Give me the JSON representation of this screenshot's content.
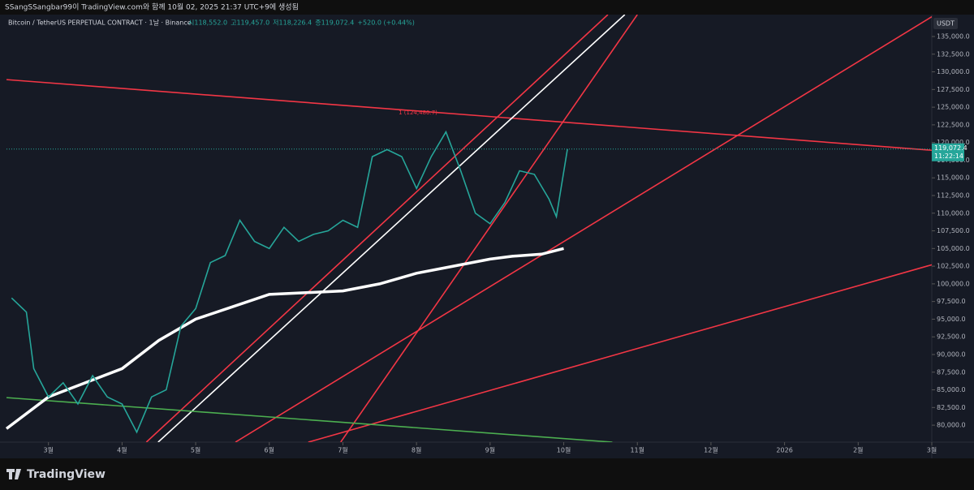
{
  "header": {
    "text": "SSangSSangbar99이 TradingView.com와 함께 10월 02, 2025 21:37 UTC+9에 생성됨"
  },
  "chart_data": {
    "type": "line",
    "symbol": "Bitcoin / TetherUS PERPETUAL CONTRACT · 1날 · Binance",
    "ohlc": [
      "시118,552.0",
      "고119,457.0",
      "저118,226.4",
      "종119,072.4",
      "+520.0 (+0.44%)"
    ],
    "currency": "USDT",
    "annotation": "1 (124,480.7)",
    "last_price": {
      "value": 119072.4,
      "label": "119,072.4"
    },
    "countdown": "11:22:14",
    "xlim": [
      2.43,
      15.0
    ],
    "xticks": [
      {
        "value": 3,
        "label": "3월"
      },
      {
        "value": 4,
        "label": "4월"
      },
      {
        "value": 5,
        "label": "5월"
      },
      {
        "value": 6,
        "label": "6월"
      },
      {
        "value": 7,
        "label": "7월"
      },
      {
        "value": 8,
        "label": "8월"
      },
      {
        "value": 9,
        "label": "9월"
      },
      {
        "value": 10,
        "label": "10월"
      },
      {
        "value": 11,
        "label": "11월"
      },
      {
        "value": 12,
        "label": "12월"
      },
      {
        "value": 13,
        "label": "2026"
      },
      {
        "value": 14,
        "label": "2월"
      },
      {
        "value": 15,
        "label": "3월"
      }
    ],
    "ylim": [
      77600,
      138100
    ],
    "yticks": [
      {
        "value": 80000,
        "label": "80,000.0"
      },
      {
        "value": 82500,
        "label": "82,500.0"
      },
      {
        "value": 85000,
        "label": "85,000.0"
      },
      {
        "value": 87500,
        "label": "87,500.0"
      },
      {
        "value": 90000,
        "label": "90,000.0"
      },
      {
        "value": 92500,
        "label": "92,500.0"
      },
      {
        "value": 95000,
        "label": "95,000.0"
      },
      {
        "value": 97500,
        "label": "97,500.0"
      },
      {
        "value": 100000,
        "label": "100,000.0"
      },
      {
        "value": 102500,
        "label": "102,500.0"
      },
      {
        "value": 105000,
        "label": "105,000.0"
      },
      {
        "value": 107500,
        "label": "107,500.0"
      },
      {
        "value": 110000,
        "label": "110,000.0"
      },
      {
        "value": 112500,
        "label": "112,500.0"
      },
      {
        "value": 115000,
        "label": "115,000.0"
      },
      {
        "value": 117500,
        "label": "117,500.0"
      },
      {
        "value": 120000,
        "label": "120,000.0"
      },
      {
        "value": 122500,
        "label": "122,500.0"
      },
      {
        "value": 125000,
        "label": "125,000.0"
      },
      {
        "value": 127500,
        "label": "127,500.0"
      },
      {
        "value": 130000,
        "label": "130,000.0"
      },
      {
        "value": 132500,
        "label": "132,500.0"
      },
      {
        "value": 135000,
        "label": "135,000.0"
      }
    ],
    "price": {
      "color": "#26a69a",
      "x": [
        2.5,
        2.7,
        2.8,
        3.0,
        3.2,
        3.4,
        3.6,
        3.8,
        4.0,
        4.2,
        4.4,
        4.6,
        4.8,
        5.0,
        5.2,
        5.4,
        5.6,
        5.8,
        6.0,
        6.2,
        6.4,
        6.6,
        6.8,
        7.0,
        7.2,
        7.4,
        7.6,
        7.8,
        8.0,
        8.2,
        8.4,
        8.6,
        8.8,
        9.0,
        9.2,
        9.4,
        9.6,
        9.8,
        9.9,
        10.05
      ],
      "values": [
        98000,
        96000,
        88000,
        84000,
        86000,
        83000,
        87000,
        84000,
        83000,
        79000,
        84000,
        85000,
        94000,
        96500,
        103000,
        104000,
        109000,
        106000,
        105000,
        108000,
        106000,
        107000,
        107500,
        109000,
        108000,
        118000,
        119000,
        118000,
        113500,
        118000,
        121500,
        116000,
        110000,
        108500,
        111500,
        116000,
        115500,
        112000,
        109500,
        119072.4
      ]
    },
    "moving_average": {
      "color": "#ffffff",
      "x": [
        2.43,
        3.0,
        4.0,
        4.5,
        5.0,
        6.0,
        7.0,
        7.5,
        8.0,
        8.5,
        9.0,
        9.3,
        9.7,
        10.0
      ],
      "values": [
        79500,
        84000,
        88000,
        92000,
        95000,
        98500,
        99000,
        100000,
        101500,
        102500,
        103500,
        103900,
        104200,
        105000
      ]
    },
    "trendlines": [
      {
        "color": "#f23645",
        "x": [
          2.43,
          15.0
        ],
        "y": [
          128900,
          118900
        ]
      },
      {
        "color": "#ffffff",
        "x": [
          4.49,
          10.83
        ],
        "y": [
          77600,
          138100
        ]
      },
      {
        "color": "#f23645",
        "x": [
          4.33,
          10.6
        ],
        "y": [
          77600,
          138100
        ]
      },
      {
        "color": "#f23645",
        "x": [
          6.97,
          11.0
        ],
        "y": [
          77600,
          138100
        ]
      },
      {
        "color": "#f23645",
        "x": [
          5.54,
          15.0
        ],
        "y": [
          77600,
          137800
        ]
      },
      {
        "color": "#f23645",
        "x": [
          6.53,
          15.0
        ],
        "y": [
          77600,
          102700
        ]
      },
      {
        "color": "#4caf50",
        "x": [
          2.43,
          10.66
        ],
        "y": [
          83900,
          77600
        ]
      }
    ]
  }
}
